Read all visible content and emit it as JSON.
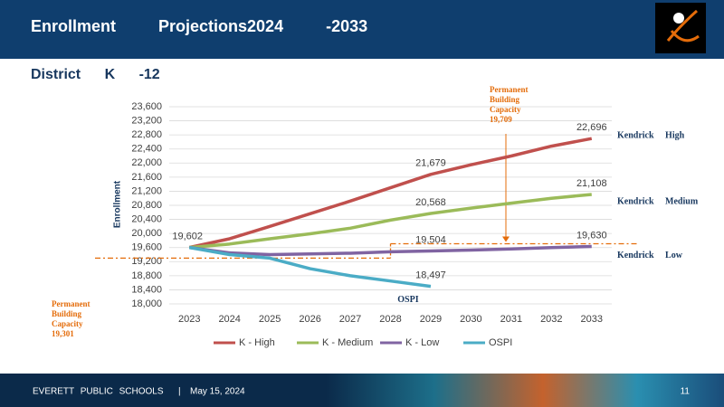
{
  "header": {
    "title": "Enrollment Projections2024 -2033",
    "subtitle": "District K -12"
  },
  "chart_data": {
    "type": "line",
    "y_label": "Enrollment",
    "categories": [
      "2023",
      "2024",
      "2025",
      "2026",
      "2027",
      "2028",
      "2029",
      "2030",
      "2031",
      "2032",
      "2033"
    ],
    "ylim": [
      18000,
      23600
    ],
    "yticks": [
      {
        "value": 18000,
        "label": "18,000"
      },
      {
        "value": 18400,
        "label": "18,400"
      },
      {
        "value": 18800,
        "label": "18,800"
      },
      {
        "value": 19200,
        "label": "19,200"
      },
      {
        "value": 19600,
        "label": "19,600"
      },
      {
        "value": 20000,
        "label": "20,000"
      },
      {
        "value": 20400,
        "label": "20,400"
      },
      {
        "value": 20800,
        "label": "20,800"
      },
      {
        "value": 21200,
        "label": "21,200"
      },
      {
        "value": 21600,
        "label": "21,600"
      },
      {
        "value": 22000,
        "label": "22,000"
      },
      {
        "value": 22400,
        "label": "22,400"
      },
      {
        "value": 22800,
        "label": "22,800"
      },
      {
        "value": 23200,
        "label": "23,200"
      },
      {
        "value": 23600,
        "label": "23,600"
      }
    ],
    "grid": true,
    "series": [
      {
        "name": "K - High",
        "color": "#c0504d",
        "side_label": "Kendrick High",
        "values": [
          19602,
          19850,
          20200,
          20560,
          20920,
          21300,
          21679,
          21950,
          22200,
          22480,
          22696
        ],
        "value_labels": [
          "19,602",
          null,
          null,
          null,
          null,
          null,
          "21,679",
          null,
          null,
          null,
          "22,696"
        ]
      },
      {
        "name": "K - Medium",
        "color": "#9bbb59",
        "side_label": "Kendrick Medium",
        "values": [
          19602,
          19700,
          19850,
          19990,
          20150,
          20380,
          20568,
          20720,
          20860,
          21000,
          21108
        ],
        "value_labels": [
          null,
          null,
          null,
          null,
          null,
          null,
          "20,568",
          null,
          null,
          null,
          "21,108"
        ]
      },
      {
        "name": "K - Low",
        "color": "#8064a2",
        "side_label": "Kendrick Low",
        "values": [
          19602,
          19450,
          19400,
          19420,
          19440,
          19480,
          19504,
          19530,
          19560,
          19600,
          19630
        ],
        "value_labels": [
          null,
          null,
          null,
          null,
          null,
          null,
          "19,504",
          null,
          null,
          null,
          "19,630"
        ]
      },
      {
        "name": "OSPI",
        "color": "#4bacc6",
        "side_label": "OSPI",
        "values": [
          19602,
          19400,
          19300,
          19000,
          18800,
          18650,
          18497,
          null,
          null,
          null,
          null
        ],
        "value_labels": [
          null,
          null,
          null,
          null,
          null,
          null,
          "18,497",
          null,
          null,
          null,
          null
        ]
      }
    ],
    "capacity_lines": [
      {
        "label_lines": [
          "Permanent",
          "Building",
          "Capacity",
          "19,709"
        ],
        "value": 19709
      },
      {
        "label_lines": [
          "Permanent",
          "Building",
          "Capacity",
          "19,301"
        ],
        "value": 19301
      }
    ]
  },
  "footer": {
    "org": "EVERETT PUBLIC SCHOOLS",
    "separator": "|",
    "date": "May 15, 2024",
    "page": "11"
  }
}
